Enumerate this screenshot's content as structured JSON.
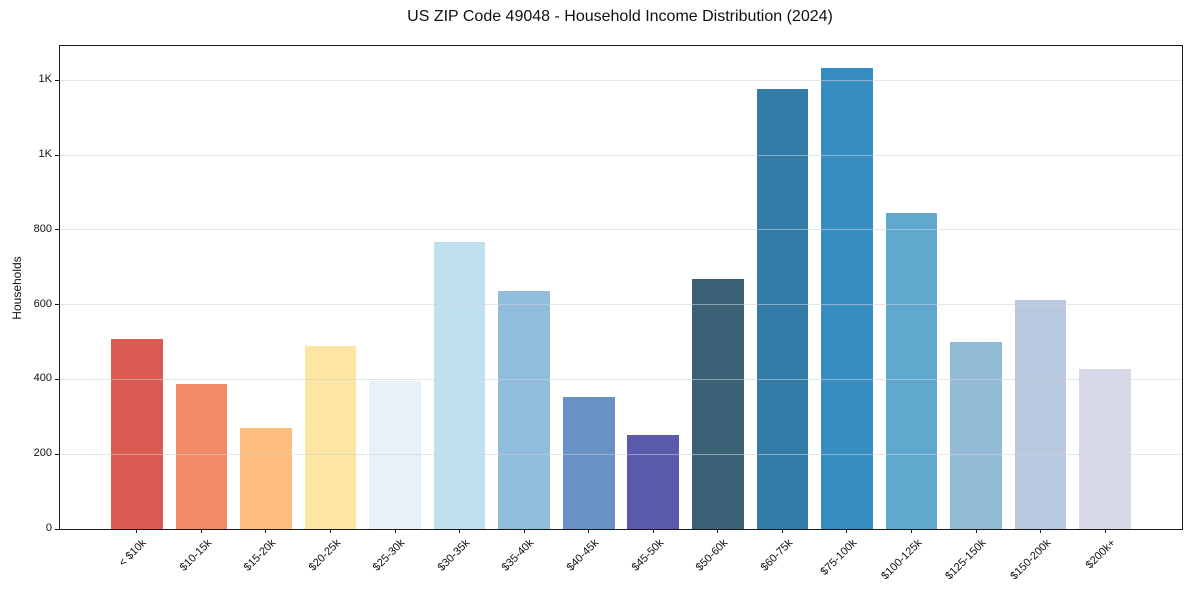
{
  "title": "US ZIP Code 49048 - Household Income Distribution (2024)",
  "chart_data": {
    "type": "bar",
    "title": "US ZIP Code 49048 - Household Income Distribution (2024)",
    "xlabel": "",
    "ylabel": "Households",
    "categories": [
      "< $10k",
      "$10-15k",
      "$15-20k",
      "$20-25k",
      "$25-30k",
      "$30-35k",
      "$35-40k",
      "$40-45k",
      "$45-50k",
      "$50-60k",
      "$60-75k",
      "$75-100k",
      "$100-125k",
      "$125-150k",
      "$150-200k",
      "$200k+"
    ],
    "values": [
      508,
      387,
      270,
      490,
      395,
      767,
      636,
      352,
      252,
      670,
      1178,
      1232,
      845,
      500,
      612,
      428
    ],
    "bar_colors": [
      "#d95b52",
      "#f28a68",
      "#fcbd7d",
      "#fde5a4",
      "#e6f2f5",
      "#bfe1ed",
      "#91bddc",
      "#6892c5",
      "#5a5aac",
      "#3a6175",
      "#327ba6",
      "#368dc1",
      "#61a8ce",
      "#93bbd8",
      "#b7c8df",
      "#d8d9e8"
    ],
    "ylim": [
      0,
      1292
    ],
    "yticks": [
      {
        "value": 0,
        "label": "0"
      },
      {
        "value": 200,
        "label": "200"
      },
      {
        "value": 400,
        "label": "400"
      },
      {
        "value": 600,
        "label": "600"
      },
      {
        "value": 800,
        "label": "800"
      },
      {
        "value": 1000,
        "label": "1K"
      },
      {
        "value": 1200,
        "label": "1K"
      }
    ],
    "grid": "horizontal",
    "legend": "none",
    "x_tick_rotation_deg": 45,
    "axis_color": "#1a1a1a",
    "grid_color": "#e3e6e8",
    "background_color": "#ffffff"
  }
}
